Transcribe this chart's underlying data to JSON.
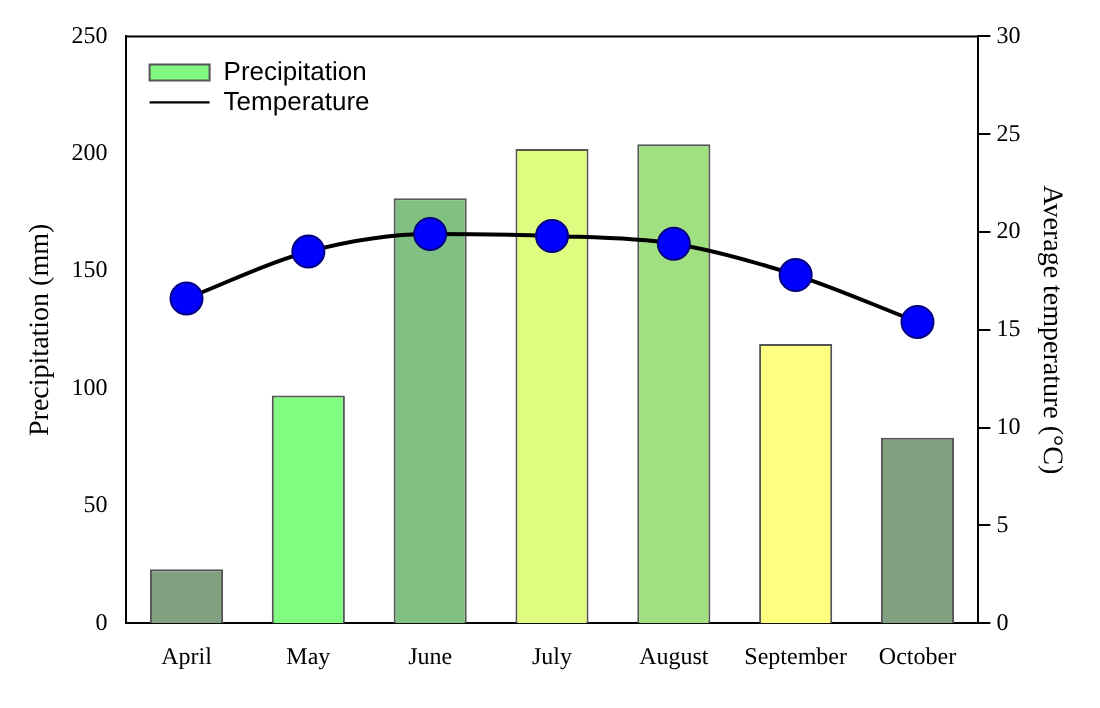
{
  "chart_data": {
    "type": "bar",
    "categories": [
      "April",
      "May",
      "June",
      "July",
      "August",
      "September",
      "October"
    ],
    "ylabel": "Precipitation (mm)",
    "y2label": "Average temperature (°C)",
    "series": [
      {
        "name": "Precipitation",
        "color": "#80f880",
        "colors": [
          "#80a080",
          "#80fc80",
          "#80c080",
          "#e0fc80",
          "#a0e080",
          "#ffff80",
          "#80a080"
        ],
        "values": [
          23,
          97,
          181,
          202,
          204,
          119,
          79
        ]
      },
      {
        "name": "Temperature",
        "type": "line",
        "axis": "y2",
        "color": "#000000",
        "marker": "circle",
        "values": [
          16.6,
          19.0,
          19.9,
          19.8,
          19.4,
          17.8,
          15.4
        ]
      }
    ],
    "ylim": [
      0,
      250
    ],
    "yticks": [
      0,
      50,
      100,
      150,
      200,
      250
    ],
    "y2lim": [
      0,
      30
    ],
    "y2ticks": [
      0,
      5,
      10,
      15,
      20,
      25,
      30
    ],
    "grid": false,
    "legend": "top left"
  }
}
